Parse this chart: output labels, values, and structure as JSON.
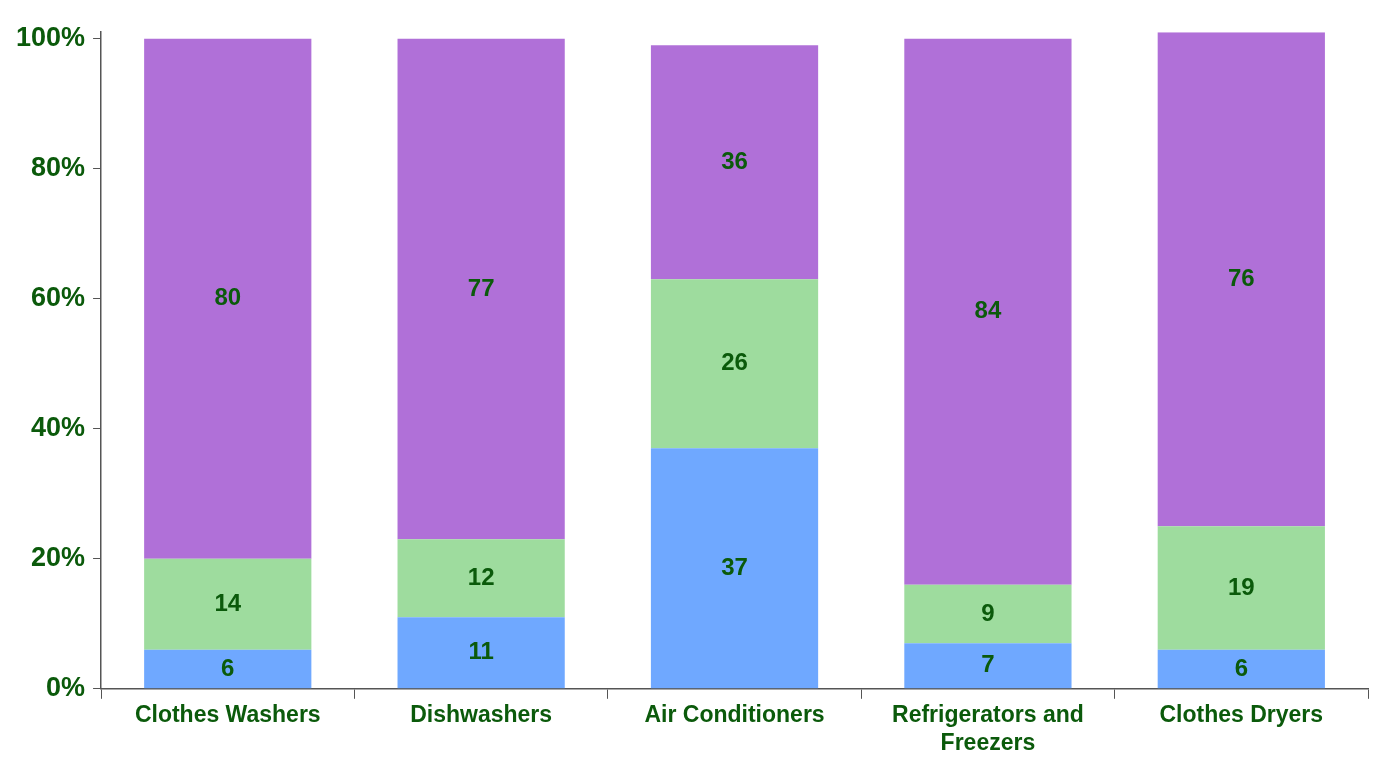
{
  "chart_data": {
    "type": "bar",
    "stacked": true,
    "data_labels": true,
    "categories": [
      "Clothes Washers",
      "Dishwashers",
      "Air Conditioners",
      "Refrigerators and Freezers",
      "Clothes Dryers"
    ],
    "series": [
      {
        "color": "#6fa8ff",
        "values": [
          6,
          11,
          37,
          7,
          6
        ]
      },
      {
        "color": "#9edc9e",
        "values": [
          14,
          12,
          26,
          9,
          19
        ]
      },
      {
        "color": "#b070d8",
        "values": [
          80,
          77,
          36,
          84,
          76
        ]
      }
    ],
    "ylim": [
      0,
      101
    ],
    "yticks": [
      {
        "value": 0,
        "label": "0%"
      },
      {
        "value": 20,
        "label": "20%"
      },
      {
        "value": 40,
        "label": "40%"
      },
      {
        "value": 60,
        "label": "60%"
      },
      {
        "value": 80,
        "label": "80%"
      },
      {
        "value": 100,
        "label": "100%"
      }
    ],
    "grid": false,
    "legend": false
  }
}
